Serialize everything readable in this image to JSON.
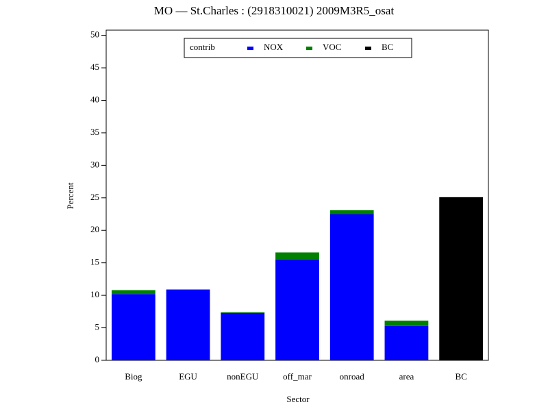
{
  "chart_data": {
    "type": "stacked_bar",
    "title": "MO  —  St.Charles :  (2918310021)  2009M3R5_osat",
    "x_label": "Sector",
    "y_label": "Percent",
    "categories": [
      "Biog",
      "EGU",
      "nonEGU",
      "off_mar",
      "onroad",
      "area",
      "BC"
    ],
    "series": [
      {
        "name": "NOX",
        "color": "#0000ff",
        "values": [
          10.2,
          10.9,
          7.3,
          15.5,
          22.5,
          5.3,
          0
        ]
      },
      {
        "name": "VOC",
        "color": "#008000",
        "values": [
          0.6,
          0,
          0.1,
          1.1,
          0.6,
          0.8,
          0
        ]
      },
      {
        "name": "BC",
        "color": "#000000",
        "values": [
          0,
          0,
          0,
          0,
          0,
          0,
          25.1
        ]
      }
    ],
    "legend_title": "contrib",
    "legend": "top",
    "ylim": [
      0,
      50.8
    ],
    "yticks": [
      0,
      5,
      10,
      15,
      20,
      25,
      30,
      35,
      40,
      45,
      50
    ]
  }
}
